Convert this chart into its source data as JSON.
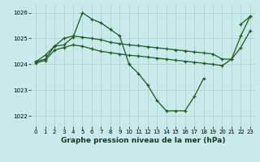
{
  "background_color": "#c8eaea",
  "grid_color": "#b0d4d4",
  "line_color": "#1a5c1a",
  "title": "Graphe pression niveau de la mer (hPa)",
  "xlim": [
    -0.5,
    23.5
  ],
  "ylim": [
    1021.6,
    1026.3
  ],
  "yticks": [
    1022,
    1023,
    1024,
    1025,
    1026
  ],
  "xticks": [
    0,
    1,
    2,
    3,
    4,
    5,
    6,
    7,
    8,
    9,
    10,
    11,
    12,
    13,
    14,
    15,
    16,
    17,
    18,
    19,
    20,
    21,
    22,
    23
  ],
  "tick_fontsize": 5.0,
  "xlabel_fontsize": 6.5,
  "series": [
    {
      "x": [
        0,
        1,
        2,
        3,
        4,
        5,
        6,
        7,
        8,
        9,
        10,
        11,
        12,
        13,
        14,
        15,
        16,
        17,
        18,
        19,
        20,
        21,
        22,
        23
      ],
      "y": [
        1024.1,
        1024.2,
        1024.7,
        1024.75,
        1025.05,
        1026.0,
        1025.75,
        1025.6,
        1025.35,
        1025.1,
        1024.0,
        1023.65,
        1023.2,
        1022.6,
        1022.2,
        1022.2,
        1022.2,
        1022.75,
        1023.45,
        null,
        null,
        null,
        1025.55,
        1025.85
      ]
    },
    {
      "x": [
        0,
        1,
        2,
        3,
        4,
        5,
        6,
        7,
        8,
        9,
        10,
        11,
        12,
        13,
        14,
        15,
        16,
        17,
        18,
        19,
        20,
        21,
        22,
        23
      ],
      "y": [
        1024.1,
        1024.35,
        1024.7,
        1025.0,
        1025.1,
        1025.05,
        1025.0,
        1024.95,
        1024.85,
        1024.8,
        1024.75,
        1024.72,
        1024.68,
        1024.64,
        1024.6,
        1024.56,
        1024.52,
        1024.48,
        1024.44,
        1024.4,
        1024.2,
        1024.2,
        1025.1,
        1025.85
      ]
    },
    {
      "x": [
        0,
        1,
        2,
        3,
        4,
        5,
        6,
        7,
        8,
        9,
        10,
        11,
        12,
        13,
        14,
        15,
        16,
        17,
        18,
        19,
        20,
        21,
        22,
        23
      ],
      "y": [
        1024.05,
        1024.15,
        1024.55,
        1024.65,
        1024.75,
        1024.7,
        1024.6,
        1024.5,
        1024.45,
        1024.4,
        1024.35,
        1024.32,
        1024.28,
        1024.24,
        1024.2,
        1024.16,
        1024.12,
        1024.08,
        1024.04,
        1024.0,
        1023.95,
        1024.2,
        1024.65,
        1025.3
      ]
    }
  ]
}
